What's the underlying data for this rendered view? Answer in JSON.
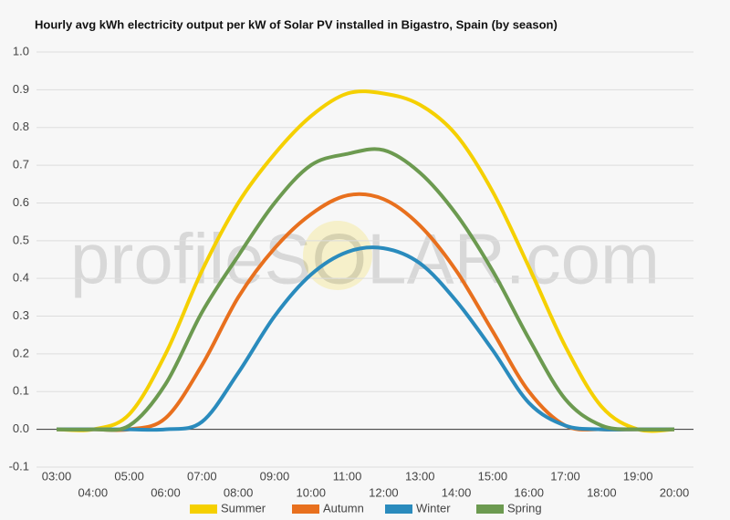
{
  "chart_data": {
    "type": "line",
    "title": "Hourly avg kWh electricity output per kW of Solar PV installed in Bigastro, Spain (by season)",
    "watermark": "profileSOLAR.com",
    "categories": [
      "03:00",
      "04:00",
      "05:00",
      "06:00",
      "07:00",
      "08:00",
      "09:00",
      "10:00",
      "11:00",
      "12:00",
      "13:00",
      "14:00",
      "15:00",
      "16:00",
      "17:00",
      "18:00",
      "19:00",
      "20:00"
    ],
    "series": [
      {
        "name": "Summer",
        "color": "#f5d000",
        "values": [
          0,
          0,
          0.04,
          0.2,
          0.42,
          0.6,
          0.73,
          0.83,
          0.89,
          0.89,
          0.86,
          0.78,
          0.63,
          0.43,
          0.22,
          0.06,
          0,
          0
        ]
      },
      {
        "name": "Autumn",
        "color": "#e8701e",
        "values": [
          0,
          0,
          0,
          0.03,
          0.17,
          0.35,
          0.48,
          0.57,
          0.62,
          0.61,
          0.54,
          0.42,
          0.26,
          0.1,
          0.01,
          0,
          0,
          0
        ]
      },
      {
        "name": "Winter",
        "color": "#2a8bbd",
        "values": [
          0,
          0,
          0,
          0,
          0.02,
          0.15,
          0.3,
          0.41,
          0.47,
          0.48,
          0.44,
          0.34,
          0.21,
          0.07,
          0.01,
          0,
          0,
          0
        ]
      },
      {
        "name": "Spring",
        "color": "#6c9a50",
        "values": [
          0,
          0,
          0.01,
          0.12,
          0.31,
          0.46,
          0.6,
          0.7,
          0.73,
          0.74,
          0.68,
          0.57,
          0.42,
          0.24,
          0.08,
          0.01,
          0,
          0
        ]
      }
    ],
    "ylim": [
      -0.1,
      1.0
    ],
    "yticks": [
      -0.1,
      {
        "value": 0,
        "label": "0.0"
      },
      0.1,
      0.2,
      0.3,
      0.4,
      0.5,
      0.6,
      0.7,
      0.8,
      0.9,
      {
        "value": 1,
        "label": "1.0"
      }
    ],
    "grid": true,
    "legend": "bottom"
  }
}
